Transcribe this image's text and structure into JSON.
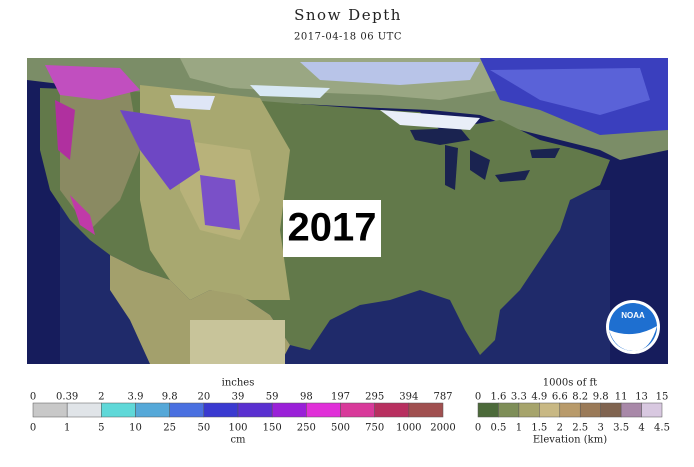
{
  "header": {
    "title": "Snow Depth",
    "subtitle": "2017-04-18 06 UTC"
  },
  "overlay_label": "2017",
  "logo": "NOAA",
  "snow_legend": {
    "units_top": "inches",
    "top_labels": [
      "0",
      "0.39",
      "2",
      "3.9",
      "9.8",
      "20",
      "39",
      "59",
      "98",
      "197",
      "295",
      "394",
      "787"
    ],
    "bottom_labels": [
      "0",
      "1",
      "5",
      "10",
      "25",
      "50",
      "100",
      "150",
      "250",
      "500",
      "750",
      "1000",
      "2000"
    ],
    "units_bottom": "cm"
  },
  "elevation_legend": {
    "units_top": "1000s of ft",
    "top_labels": [
      "0",
      "1.6",
      "3.3",
      "4.9",
      "6.6",
      "8.2",
      "9.8",
      "11",
      "13",
      "15"
    ],
    "bottom_labels": [
      "0",
      "0.5",
      "1",
      "1.5",
      "2",
      "2.5",
      "3",
      "3.5",
      "4",
      "4.5"
    ],
    "units_bottom": "Elevation (km)"
  }
}
